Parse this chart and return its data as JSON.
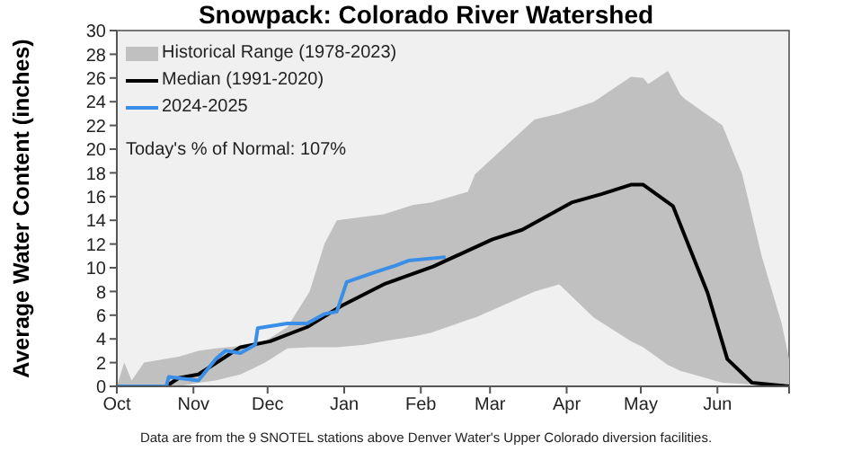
{
  "chart_data": {
    "type": "line",
    "title": "Snowpack: Colorado River Watershed",
    "ylabel": "Average Water Content (inches)",
    "xlim": [
      "2024-10-01",
      "2025-06-30"
    ],
    "xticks": [
      {
        "value": "2024-10-01",
        "label": "Oct"
      },
      {
        "value": "2024-11-01",
        "label": "Nov"
      },
      {
        "value": "2024-12-01",
        "label": "Dec"
      },
      {
        "value": "2025-01-01",
        "label": "Jan"
      },
      {
        "value": "2025-02-01",
        "label": "Feb"
      },
      {
        "value": "2025-03-01",
        "label": "Mar"
      },
      {
        "value": "2025-04-01",
        "label": "Apr"
      },
      {
        "value": "2025-05-01",
        "label": "May"
      },
      {
        "value": "2025-06-01",
        "label": "Jun"
      },
      {
        "value": "2025-06-30",
        "label": null
      }
    ],
    "ylim": [
      0,
      30
    ],
    "yticks": [
      0,
      2,
      4,
      6,
      8,
      10,
      12,
      14,
      16,
      18,
      20,
      22,
      24,
      26,
      28,
      30
    ],
    "legend": "top left",
    "series": [
      {
        "name": "Historical Range (1978-2023)",
        "type": "area",
        "color": "#c0c0c0",
        "x": [
          "2024-10-01",
          "2024-10-04",
          "2024-10-07",
          "2024-10-12",
          "2024-10-26",
          "2024-11-03",
          "2024-11-10",
          "2024-11-20",
          "2024-11-25",
          "2024-11-30",
          "2024-12-09",
          "2024-12-18",
          "2024-12-24",
          "2024-12-29",
          "2025-01-09",
          "2025-01-17",
          "2025-01-29",
          "2025-02-05",
          "2025-02-20",
          "2025-02-23",
          "2025-03-19",
          "2025-03-29",
          "2025-04-12",
          "2025-04-27",
          "2025-05-02",
          "2025-05-04",
          "2025-05-12",
          "2025-05-17",
          "2025-05-19",
          "2025-06-03",
          "2025-06-11",
          "2025-06-19",
          "2025-06-27",
          "2025-06-30"
        ],
        "values": [
          null,
          null,
          null,
          null,
          null,
          null,
          null,
          null,
          null,
          null,
          null,
          null,
          null,
          null,
          null,
          null,
          null,
          null,
          null,
          null,
          null,
          null,
          null,
          null,
          null,
          null,
          null,
          null,
          null,
          null,
          null,
          null,
          null,
          null
        ],
        "upper": [
          0,
          2,
          0.5,
          2,
          2.5,
          3,
          3.2,
          3.4,
          3.5,
          3.8,
          5,
          8,
          12,
          14,
          14.3,
          14.5,
          15.3,
          15.5,
          16.4,
          17.9,
          22.5,
          23,
          24,
          26.1,
          26,
          25.5,
          26.6,
          24.6,
          24.2,
          22,
          17.9,
          10.9,
          5.3,
          2.3
        ],
        "lower": [
          0,
          0,
          0,
          0,
          0,
          0.3,
          0.5,
          1,
          1.5,
          2,
          3.2,
          3.3,
          3.3,
          3.3,
          3.5,
          3.8,
          4.2,
          4.5,
          5.6,
          5.8,
          8,
          8.6,
          5.8,
          3.8,
          3.3,
          3,
          1.8,
          1.3,
          1.2,
          0.3,
          0.2,
          0.1,
          0,
          0
        ]
      },
      {
        "name": "Median (1991-2020)",
        "type": "line",
        "color": "#000000",
        "x": [
          "2024-10-01",
          "2024-10-21",
          "2024-10-26",
          "2024-11-03",
          "2024-11-20",
          "2024-12-02",
          "2024-12-17",
          "2024-12-31",
          "2025-01-17",
          "2025-02-06",
          "2025-03-02",
          "2025-03-14",
          "2025-04-03",
          "2025-04-15",
          "2025-04-27",
          "2025-05-02",
          "2025-05-14",
          "2025-05-28",
          "2025-06-05",
          "2025-06-15",
          "2025-06-30"
        ],
        "values": [
          0,
          0,
          0.7,
          1,
          3.3,
          3.8,
          5,
          6.8,
          8.6,
          10.1,
          12.4,
          13.2,
          15.5,
          16.2,
          17,
          17,
          15.2,
          7.9,
          2.3,
          0.3,
          0
        ]
      },
      {
        "name": "2024-2025",
        "type": "line",
        "color": "#3a8ee6",
        "x": [
          "2024-10-01",
          "2024-10-21",
          "2024-10-22",
          "2024-11-03",
          "2024-11-10",
          "2024-11-14",
          "2024-11-20",
          "2024-11-26",
          "2024-11-27",
          "2024-12-09",
          "2024-12-17",
          "2024-12-24",
          "2024-12-29",
          "2025-01-02",
          "2025-01-13",
          "2025-01-22",
          "2025-01-27",
          "2025-02-11"
        ],
        "values": [
          0,
          0,
          0.8,
          0.5,
          2.3,
          3,
          2.8,
          3.5,
          4.9,
          5.3,
          5.3,
          6.1,
          6.3,
          8.8,
          9.6,
          10.2,
          10.6,
          10.9
        ]
      }
    ],
    "annotations": [
      "Today's % of Normal: 107%",
      "Data are from the 9 SNOTEL stations above Denver Water's Upper Colorado diversion facilities."
    ]
  }
}
